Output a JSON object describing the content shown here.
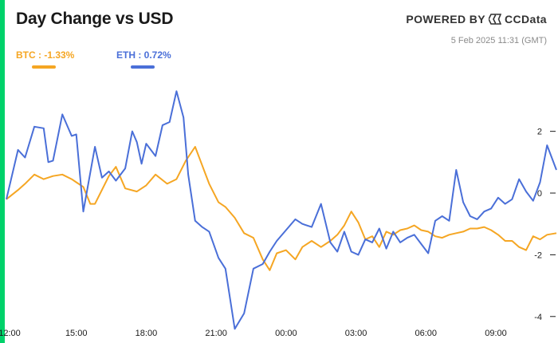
{
  "header": {
    "title": "Day Change vs USD",
    "brand_prefix": "POWERED BY",
    "brand_name": "CCData",
    "timestamp": "5 Feb 2025 11:31 (GMT)",
    "accent_color": "#00d26a"
  },
  "legend": [
    {
      "label": "BTC : -1.33%",
      "color": "#f5a623"
    },
    {
      "label": "ETH : 0.72%",
      "color": "#4a6fd8"
    }
  ],
  "chart_data": {
    "type": "line",
    "x_tick_labels": [
      "12:00",
      "15:00",
      "18:00",
      "21:00",
      "00:00",
      "03:00",
      "06:00",
      "09:00"
    ],
    "x_tick_hours": [
      0,
      3,
      6,
      9,
      12,
      15,
      18,
      21
    ],
    "x_range_hours": [
      0,
      23.6
    ],
    "y_ticks": [
      -4,
      -2,
      0,
      2
    ],
    "ylim": [
      -4.6,
      3.8
    ],
    "grid": false,
    "legend_position": "top-left",
    "series": [
      {
        "name": "BTC",
        "color": "#f5a623",
        "values": [
          [
            0,
            -0.2
          ],
          [
            0.5,
            0.1
          ],
          [
            0.8,
            0.3
          ],
          [
            1.2,
            0.6
          ],
          [
            1.6,
            0.45
          ],
          [
            2,
            0.55
          ],
          [
            2.4,
            0.6
          ],
          [
            2.8,
            0.45
          ],
          [
            3,
            0.35
          ],
          [
            3.3,
            0.2
          ],
          [
            3.6,
            -0.35
          ],
          [
            3.8,
            -0.35
          ],
          [
            4.4,
            0.55
          ],
          [
            4.7,
            0.85
          ],
          [
            5.1,
            0.15
          ],
          [
            5.6,
            0.05
          ],
          [
            6,
            0.25
          ],
          [
            6.4,
            0.6
          ],
          [
            6.9,
            0.3
          ],
          [
            7.3,
            0.45
          ],
          [
            7.7,
            1.05
          ],
          [
            8.1,
            1.5
          ],
          [
            8.4,
            0.9
          ],
          [
            8.7,
            0.3
          ],
          [
            9.1,
            -0.3
          ],
          [
            9.4,
            -0.45
          ],
          [
            9.8,
            -0.8
          ],
          [
            10.2,
            -1.3
          ],
          [
            10.6,
            -1.45
          ],
          [
            11,
            -2.15
          ],
          [
            11.3,
            -2.5
          ],
          [
            11.6,
            -1.95
          ],
          [
            12,
            -1.85
          ],
          [
            12.4,
            -2.15
          ],
          [
            12.7,
            -1.75
          ],
          [
            13.1,
            -1.55
          ],
          [
            13.5,
            -1.75
          ],
          [
            13.9,
            -1.55
          ],
          [
            14.2,
            -1.35
          ],
          [
            14.5,
            -1.05
          ],
          [
            14.8,
            -0.6
          ],
          [
            15.1,
            -0.95
          ],
          [
            15.4,
            -1.5
          ],
          [
            15.7,
            -1.4
          ],
          [
            16,
            -1.75
          ],
          [
            16.3,
            -1.25
          ],
          [
            16.6,
            -1.35
          ],
          [
            16.9,
            -1.2
          ],
          [
            17.2,
            -1.15
          ],
          [
            17.5,
            -1.05
          ],
          [
            17.8,
            -1.2
          ],
          [
            18.1,
            -1.25
          ],
          [
            18.4,
            -1.4
          ],
          [
            18.7,
            -1.45
          ],
          [
            19,
            -1.35
          ],
          [
            19.3,
            -1.3
          ],
          [
            19.6,
            -1.25
          ],
          [
            19.9,
            -1.15
          ],
          [
            20.2,
            -1.15
          ],
          [
            20.5,
            -1.1
          ],
          [
            20.8,
            -1.2
          ],
          [
            21.1,
            -1.35
          ],
          [
            21.4,
            -1.55
          ],
          [
            21.7,
            -1.55
          ],
          [
            22,
            -1.75
          ],
          [
            22.3,
            -1.85
          ],
          [
            22.6,
            -1.4
          ],
          [
            22.9,
            -1.5
          ],
          [
            23.2,
            -1.35
          ],
          [
            23.6,
            -1.3
          ]
        ]
      },
      {
        "name": "ETH",
        "color": "#4a6fd8",
        "values": [
          [
            0,
            -0.2
          ],
          [
            0.5,
            1.4
          ],
          [
            0.8,
            1.15
          ],
          [
            1.2,
            2.15
          ],
          [
            1.6,
            2.1
          ],
          [
            1.8,
            1.0
          ],
          [
            2,
            1.05
          ],
          [
            2.4,
            2.55
          ],
          [
            2.8,
            1.85
          ],
          [
            3,
            1.9
          ],
          [
            3.3,
            -0.6
          ],
          [
            3.8,
            1.5
          ],
          [
            4.1,
            0.5
          ],
          [
            4.4,
            0.7
          ],
          [
            4.7,
            0.4
          ],
          [
            5.1,
            0.8
          ],
          [
            5.4,
            2.0
          ],
          [
            5.6,
            1.65
          ],
          [
            5.8,
            0.95
          ],
          [
            6,
            1.6
          ],
          [
            6.4,
            1.2
          ],
          [
            6.7,
            2.2
          ],
          [
            7,
            2.3
          ],
          [
            7.3,
            3.3
          ],
          [
            7.6,
            2.45
          ],
          [
            7.8,
            0.6
          ],
          [
            8.1,
            -0.9
          ],
          [
            8.4,
            -1.1
          ],
          [
            8.7,
            -1.25
          ],
          [
            9.1,
            -2.1
          ],
          [
            9.4,
            -2.45
          ],
          [
            9.8,
            -4.4
          ],
          [
            10.2,
            -3.9
          ],
          [
            10.6,
            -2.45
          ],
          [
            11,
            -2.3
          ],
          [
            11.3,
            -1.9
          ],
          [
            11.6,
            -1.55
          ],
          [
            12,
            -1.2
          ],
          [
            12.4,
            -0.85
          ],
          [
            12.7,
            -1.0
          ],
          [
            13.1,
            -1.1
          ],
          [
            13.5,
            -0.35
          ],
          [
            13.9,
            -1.6
          ],
          [
            14.2,
            -1.9
          ],
          [
            14.5,
            -1.25
          ],
          [
            14.8,
            -1.9
          ],
          [
            15.1,
            -2.0
          ],
          [
            15.4,
            -1.5
          ],
          [
            15.7,
            -1.6
          ],
          [
            16,
            -1.15
          ],
          [
            16.3,
            -1.8
          ],
          [
            16.6,
            -1.25
          ],
          [
            16.9,
            -1.6
          ],
          [
            17.2,
            -1.45
          ],
          [
            17.5,
            -1.35
          ],
          [
            17.8,
            -1.65
          ],
          [
            18.1,
            -1.95
          ],
          [
            18.4,
            -0.9
          ],
          [
            18.7,
            -0.75
          ],
          [
            19,
            -0.9
          ],
          [
            19.3,
            0.75
          ],
          [
            19.6,
            -0.3
          ],
          [
            19.9,
            -0.75
          ],
          [
            20.2,
            -0.85
          ],
          [
            20.5,
            -0.6
          ],
          [
            20.8,
            -0.5
          ],
          [
            21.1,
            -0.15
          ],
          [
            21.4,
            -0.35
          ],
          [
            21.7,
            -0.2
          ],
          [
            22,
            0.45
          ],
          [
            22.3,
            0.05
          ],
          [
            22.6,
            -0.25
          ],
          [
            22.9,
            0.35
          ],
          [
            23.2,
            1.55
          ],
          [
            23.6,
            0.75
          ]
        ]
      }
    ]
  }
}
